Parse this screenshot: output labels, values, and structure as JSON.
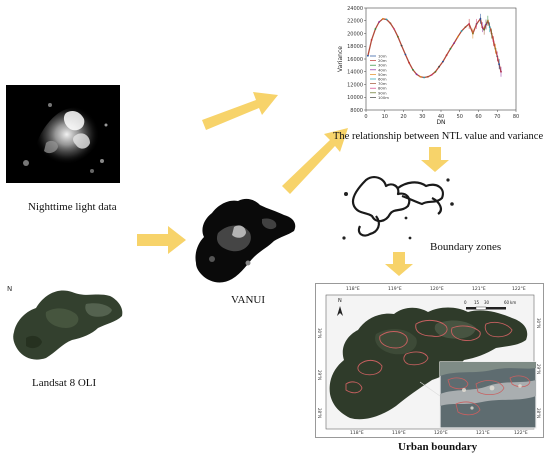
{
  "captions": {
    "ntl": "Nighttime light data",
    "landsat": "Landsat 8 OLI",
    "vanui": "VANUI",
    "relationship": "The relationship between NTL value and variance",
    "boundary_zones": "Boundary zones",
    "urban_boundary": "Urban boundary"
  },
  "colors": {
    "arrow": "#f7d36a",
    "curve": "#b24a3a",
    "night_bg": "#000000",
    "landsat_green": "#33402e",
    "boundary_outline": "#c86060"
  },
  "chart_data": {
    "type": "line",
    "title": "",
    "xlabel": "DN",
    "ylabel": "Variance",
    "xlim": [
      0,
      80
    ],
    "ylim": [
      8000,
      24000
    ],
    "x_ticks": [
      0,
      10,
      20,
      30,
      40,
      50,
      60,
      70,
      80
    ],
    "y_ticks": [
      8000,
      10000,
      12000,
      14000,
      16000,
      18000,
      20000,
      22000,
      24000
    ],
    "legend_position": "left",
    "legend": [
      "10m",
      "20m",
      "30m",
      "40m",
      "50m",
      "60m",
      "70m",
      "80m",
      "90m",
      "100m"
    ],
    "series": [
      {
        "x": [
          1,
          3,
          5,
          7,
          9,
          11,
          13,
          15,
          17,
          19,
          21,
          23,
          25,
          27,
          29,
          31,
          33,
          35,
          37,
          39,
          41,
          43,
          45,
          47,
          49,
          51,
          53,
          55,
          57,
          59,
          61,
          62,
          63,
          64,
          65,
          66,
          67,
          68,
          69,
          70,
          71,
          72
        ],
        "y": [
          16500,
          19000,
          20700,
          21800,
          22300,
          22200,
          21600,
          20700,
          19500,
          18100,
          16700,
          15400,
          14300,
          13600,
          13200,
          13100,
          13200,
          13500,
          14000,
          14800,
          15600,
          16600,
          17600,
          18500,
          19500,
          20400,
          21000,
          21500,
          20000,
          21500,
          22300,
          21000,
          20600,
          21400,
          22000,
          21000,
          20000,
          18800,
          17600,
          16400,
          15200,
          14000
        ]
      }
    ]
  },
  "urban_map": {
    "top_lon_labels": [
      "118°E",
      "119°E",
      "120°E",
      "121°E",
      "122°E"
    ],
    "bottom_lon_labels": [
      "118°E",
      "119°E",
      "120°E",
      "121°E",
      "122°E"
    ],
    "left_lat_labels": [
      "30°N",
      "29°N",
      "28°N"
    ],
    "right_lat_labels": [
      "30°N",
      "29°N",
      "28°N"
    ],
    "north": "N",
    "scale_numbers": [
      "0",
      "15",
      "30",
      "60"
    ],
    "scale_unit": "km"
  },
  "landsat_north": "N"
}
